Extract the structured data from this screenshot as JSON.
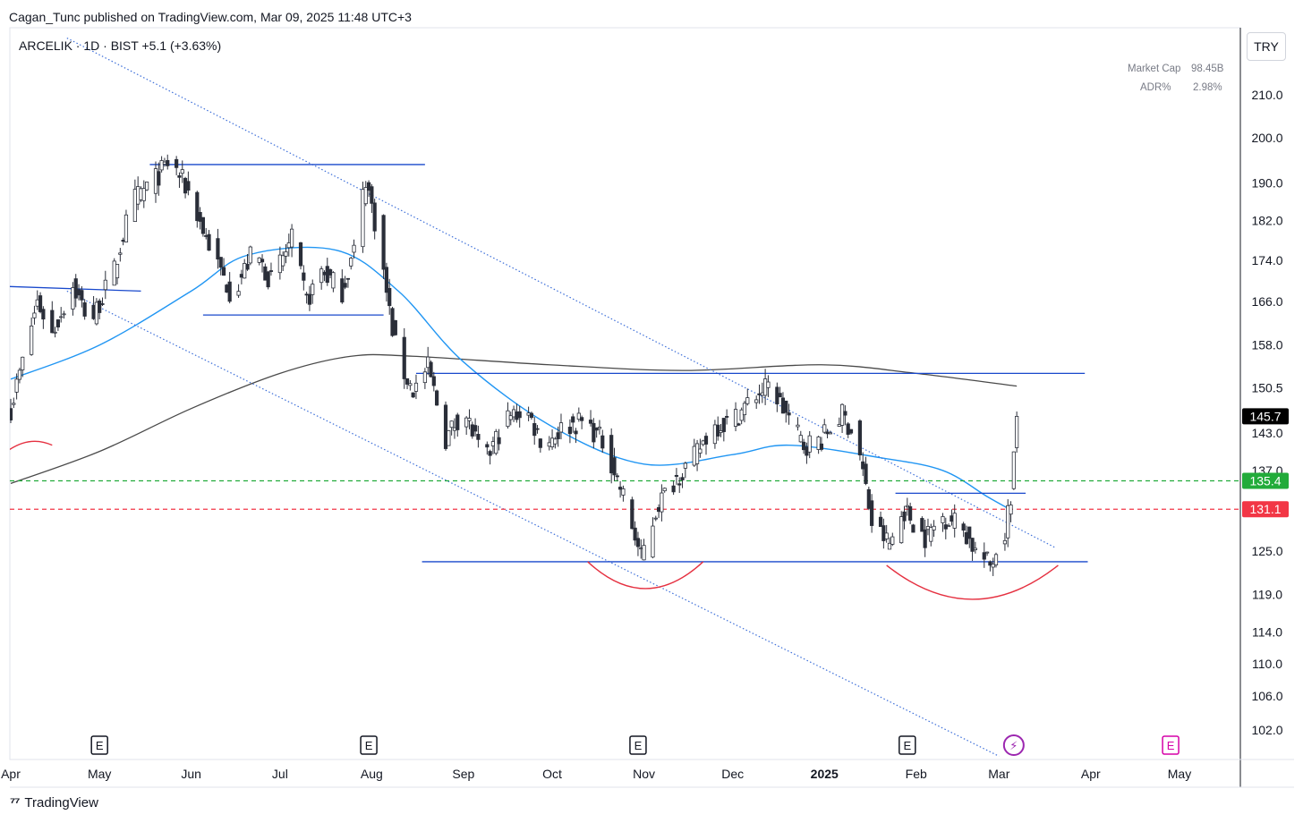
{
  "header": {
    "published": "Cagan_Tunc published on TradingView.com, Mar 09, 2025 11:48 UTC+3",
    "symbol_line": "ARCELIK · 1D · BIST  +5.1 (+3.63%)"
  },
  "metrics": [
    {
      "label": "Market Cap",
      "value": "98.45B"
    },
    {
      "label": "ADR%",
      "value": "2.98%"
    }
  ],
  "currency_button": "TRY",
  "footer": {
    "brand": "TradingView"
  },
  "colors": {
    "candle": "#2a2e39",
    "ma_short": "#2196f3",
    "ma_long": "#4a4a4a",
    "trendline": "#1848cc",
    "channel": "#3d6fd9",
    "arc": "#e53040",
    "buy_level": "#22ab3a",
    "sell_level": "#f23645",
    "last_price_bg": "#000000",
    "earnings_purple": "#9c27b0",
    "earnings_pink": "#d500a8"
  },
  "chart_data": {
    "type": "candlestick",
    "timeframe": "1D",
    "y_axis": {
      "scale": "log",
      "range": [
        98,
        220
      ],
      "ticks": [
        "210.0",
        "200.0",
        "190.0",
        "182.0",
        "174.0",
        "166.0",
        "158.0",
        "150.5",
        "143.0",
        "137.0",
        "125.0",
        "119.0",
        "114.0",
        "110.0",
        "106.0",
        "102.0"
      ]
    },
    "x_axis": {
      "ticks": [
        "Apr",
        "May",
        "Jun",
        "Jul",
        "Aug",
        "Sep",
        "Oct",
        "Nov",
        "Dec",
        "2025",
        "Feb",
        "Mar",
        "Apr",
        "May"
      ],
      "bold_ticks": [
        "2025"
      ]
    },
    "price_labels": [
      {
        "value": 145.7,
        "text": "145.7",
        "kind": "last"
      },
      {
        "value": 135.4,
        "text": "135.4",
        "kind": "buy"
      },
      {
        "value": 131.1,
        "text": "131.1",
        "kind": "sell"
      }
    ],
    "waypoints": [
      [
        "2024-04-01",
        147
      ],
      [
        "2024-04-05",
        155
      ],
      [
        "2024-04-10",
        166
      ],
      [
        "2024-04-15",
        160
      ],
      [
        "2024-04-22",
        169
      ],
      [
        "2024-04-28",
        162
      ],
      [
        "2024-05-06",
        172
      ],
      [
        "2024-05-12",
        186
      ],
      [
        "2024-05-20",
        191
      ],
      [
        "2024-05-25",
        195
      ],
      [
        "2024-06-01",
        187
      ],
      [
        "2024-06-05",
        180
      ],
      [
        "2024-06-10",
        173
      ],
      [
        "2024-06-15",
        167
      ],
      [
        "2024-06-22",
        176
      ],
      [
        "2024-06-28",
        170
      ],
      [
        "2024-07-05",
        178
      ],
      [
        "2024-07-10",
        166
      ],
      [
        "2024-07-15",
        172
      ],
      [
        "2024-07-22",
        168
      ],
      [
        "2024-07-26",
        176
      ],
      [
        "2024-07-30",
        191
      ],
      [
        "2024-08-03",
        179
      ],
      [
        "2024-08-07",
        164
      ],
      [
        "2024-08-10",
        155
      ],
      [
        "2024-08-15",
        150
      ],
      [
        "2024-08-20",
        154
      ],
      [
        "2024-08-26",
        142
      ],
      [
        "2024-09-01",
        147
      ],
      [
        "2024-09-08",
        138
      ],
      [
        "2024-09-15",
        145
      ],
      [
        "2024-09-22",
        147
      ],
      [
        "2024-09-28",
        141
      ],
      [
        "2024-10-05",
        144
      ],
      [
        "2024-10-12",
        145
      ],
      [
        "2024-10-19",
        141
      ],
      [
        "2024-10-25",
        133
      ],
      [
        "2024-10-31",
        124
      ],
      [
        "2024-11-06",
        132
      ],
      [
        "2024-11-12",
        136
      ],
      [
        "2024-11-18",
        139
      ],
      [
        "2024-11-24",
        144
      ],
      [
        "2024-12-01",
        145
      ],
      [
        "2024-12-08",
        149
      ],
      [
        "2024-12-14",
        151
      ],
      [
        "2024-12-18",
        147
      ],
      [
        "2024-12-25",
        141
      ],
      [
        "2024-12-31",
        142
      ],
      [
        "2025-01-07",
        146
      ],
      [
        "2025-01-12",
        142
      ],
      [
        "2025-01-17",
        129
      ],
      [
        "2025-01-23",
        126
      ],
      [
        "2025-01-28",
        131
      ],
      [
        "2025-02-04",
        127
      ],
      [
        "2025-02-10",
        130
      ],
      [
        "2025-02-16",
        129
      ],
      [
        "2025-02-21",
        125
      ],
      [
        "2025-02-26",
        123
      ],
      [
        "2025-03-03",
        128
      ],
      [
        "2025-03-05",
        133
      ],
      [
        "2025-03-07",
        145.7
      ]
    ],
    "overlays": {
      "ma_short": [
        [
          "2024-04-01",
          152
        ],
        [
          "2024-05-01",
          158
        ],
        [
          "2024-06-01",
          168
        ],
        [
          "2024-06-20",
          175
        ],
        [
          "2024-07-20",
          176
        ],
        [
          "2024-08-10",
          168
        ],
        [
          "2024-09-01",
          155
        ],
        [
          "2024-10-01",
          144
        ],
        [
          "2024-11-01",
          138
        ],
        [
          "2024-12-01",
          139.5
        ],
        [
          "2024-12-20",
          141
        ],
        [
          "2025-01-20",
          139
        ],
        [
          "2025-02-10",
          137
        ],
        [
          "2025-02-25",
          133
        ],
        [
          "2025-03-05",
          131
        ]
      ],
      "ma_long": [
        [
          "2024-04-01",
          135
        ],
        [
          "2024-05-01",
          140
        ],
        [
          "2024-06-01",
          147
        ],
        [
          "2024-07-01",
          153
        ],
        [
          "2024-07-25",
          156
        ],
        [
          "2024-08-15",
          156
        ],
        [
          "2024-09-30",
          154.5
        ],
        [
          "2024-11-15",
          153.5
        ],
        [
          "2024-12-31",
          154.5
        ],
        [
          "2025-02-01",
          153
        ],
        [
          "2025-03-07",
          150.8
        ]
      ],
      "trendlines": [
        {
          "style": "dotted",
          "points": [
            [
              "2024-04-20",
              224
            ],
            [
              "2025-03-20",
              125.5
            ]
          ]
        },
        {
          "style": "dotted",
          "points": [
            [
              "2024-04-20",
              168
            ],
            [
              "2025-03-01",
              99
            ]
          ]
        },
        {
          "style": "solid",
          "points": [
            [
              "2024-05-18",
              194
            ],
            [
              "2024-08-19",
              194
            ]
          ]
        },
        {
          "style": "solid",
          "points": [
            [
              "2024-06-05",
              163.5
            ],
            [
              "2024-08-05",
              163.5
            ]
          ]
        },
        {
          "style": "solid",
          "points": [
            [
              "2024-03-25",
              169
            ],
            [
              "2024-05-15",
              168
            ]
          ]
        },
        {
          "style": "solid",
          "points": [
            [
              "2024-08-16",
              153
            ],
            [
              "2025-03-30",
              153
            ]
          ]
        },
        {
          "style": "solid",
          "points": [
            [
              "2024-08-18",
              123.5
            ],
            [
              "2025-03-31",
              123.5
            ]
          ]
        },
        {
          "style": "solid",
          "points": [
            [
              "2025-01-25",
              133.5
            ],
            [
              "2025-03-10",
              133.5
            ]
          ]
        }
      ],
      "arcs": [
        {
          "from": [
            "2024-10-13",
            123.5
          ],
          "to": [
            "2024-11-21",
            123.5
          ],
          "depth": [
            -30
          ]
        },
        {
          "from": [
            "2025-01-22",
            123
          ],
          "to": [
            "2025-03-21",
            123
          ],
          "depth": [
            -38
          ]
        },
        {
          "from": [
            "2024-03-25",
            137.5
          ],
          "to": [
            "2024-04-15",
            141
          ],
          "depth": [
            14
          ]
        }
      ],
      "levels": [
        {
          "value": 135.4,
          "style": "dashed",
          "kind": "buy"
        },
        {
          "value": 131.1,
          "style": "dashed",
          "kind": "sell"
        }
      ]
    },
    "events": [
      {
        "date": "2024-05-01",
        "label": "E",
        "kind": "earnings"
      },
      {
        "date": "2024-07-31",
        "label": "E",
        "kind": "earnings"
      },
      {
        "date": "2024-10-30",
        "label": "E",
        "kind": "earnings"
      },
      {
        "date": "2025-01-29",
        "label": "E",
        "kind": "earnings"
      },
      {
        "date": "2025-03-06",
        "label": "⚡",
        "kind": "dividend"
      },
      {
        "date": "2025-04-28",
        "label": "E",
        "kind": "earnings-upcoming"
      }
    ]
  }
}
